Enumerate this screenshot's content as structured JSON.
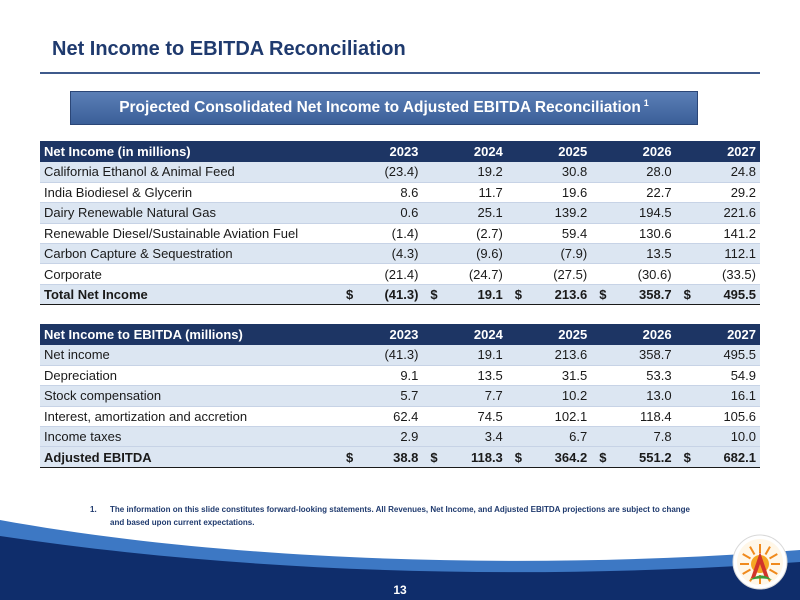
{
  "header": {
    "title": "Net Income to EBITDA Reconciliation",
    "banner_text": "Projected Consolidated Net Income to Adjusted EBITDA Reconciliation",
    "banner_footnote_mark": "1"
  },
  "table1": {
    "header": [
      "Net Income (in millions)",
      "2023",
      "2024",
      "2025",
      "2026",
      "2027"
    ],
    "rows": [
      {
        "label": "California Ethanol & Animal Feed",
        "values": [
          "(23.4)",
          "19.2",
          "30.8",
          "28.0",
          "24.8"
        ]
      },
      {
        "label": "India Biodiesel & Glycerin",
        "values": [
          "8.6",
          "11.7",
          "19.6",
          "22.7",
          "29.2"
        ]
      },
      {
        "label": "Dairy Renewable Natural Gas",
        "values": [
          "0.6",
          "25.1",
          "139.2",
          "194.5",
          "221.6"
        ]
      },
      {
        "label": "Renewable Diesel/Sustainable Aviation Fuel",
        "values": [
          "(1.4)",
          "(2.7)",
          "59.4",
          "130.6",
          "141.2"
        ]
      },
      {
        "label": "Carbon Capture & Sequestration",
        "values": [
          "(4.3)",
          "(9.6)",
          "(7.9)",
          "13.5",
          "112.1"
        ]
      },
      {
        "label": "Corporate",
        "values": [
          "(21.4)",
          "(24.7)",
          "(27.5)",
          "(30.6)",
          "(33.5)"
        ]
      }
    ],
    "total": {
      "label": "Total Net Income",
      "currency": "$",
      "values": [
        "(41.3)",
        "19.1",
        "213.6",
        "358.7",
        "495.5"
      ]
    }
  },
  "table2": {
    "header": [
      "Net Income to EBITDA (millions)",
      "2023",
      "2024",
      "2025",
      "2026",
      "2027"
    ],
    "rows": [
      {
        "label": "Net income",
        "values": [
          "(41.3)",
          "19.1",
          "213.6",
          "358.7",
          "495.5"
        ]
      },
      {
        "label": "Depreciation",
        "values": [
          "9.1",
          "13.5",
          "31.5",
          "53.3",
          "54.9"
        ]
      },
      {
        "label": "Stock compensation",
        "values": [
          "5.7",
          "7.7",
          "10.2",
          "13.0",
          "16.1"
        ]
      },
      {
        "label": "Interest, amortization and accretion",
        "values": [
          "62.4",
          "74.5",
          "102.1",
          "118.4",
          "105.6"
        ]
      },
      {
        "label": "Income taxes",
        "values": [
          "2.9",
          "3.4",
          "6.7",
          "7.8",
          "10.0"
        ]
      }
    ],
    "total": {
      "label": "Adjusted EBITDA",
      "currency": "$",
      "values": [
        "38.8",
        "118.3",
        "364.2",
        "551.2",
        "682.1"
      ]
    }
  },
  "footnote": {
    "number": "1.",
    "text": "The information on this slide constitutes forward-looking statements. All Revenues, Net Income, and Adjusted EBITDA projections are subject to change and based upon current expectations."
  },
  "footer": {
    "page_number": "13",
    "logo_icon": "aemetis-sun-logo-icon"
  },
  "colors": {
    "title": "#1f3a6e",
    "banner": "#4a6fa9",
    "table_header": "#1d3564",
    "row_stripe": "#dce6f2",
    "wave_dark": "#0f2d6b",
    "wave_light": "#3d78c4",
    "logo_orange": "#f08a1c",
    "logo_red": "#d1342b",
    "logo_green": "#3b9b3b"
  }
}
